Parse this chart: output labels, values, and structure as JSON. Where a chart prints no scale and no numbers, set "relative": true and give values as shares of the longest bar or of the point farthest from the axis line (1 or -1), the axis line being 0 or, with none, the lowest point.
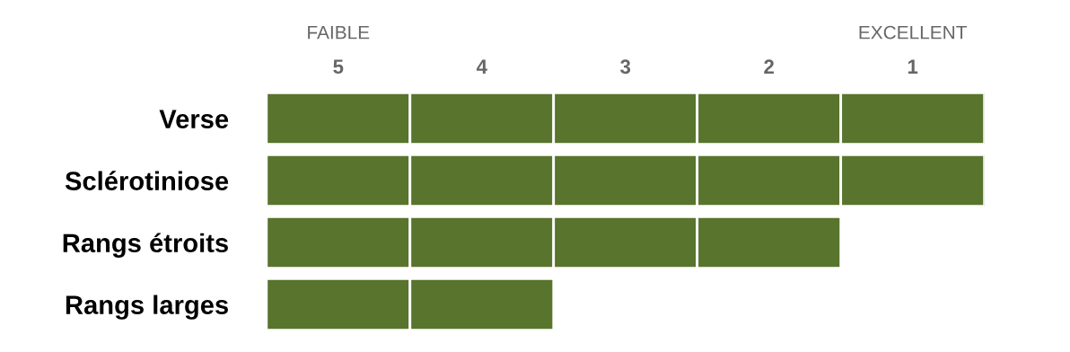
{
  "chart_data": {
    "type": "bar",
    "orientation": "horizontal",
    "stacked": true,
    "relative": true,
    "categories": [
      "Verse",
      "Sclérotiniose",
      "Rangs étroits",
      "Rangs larges"
    ],
    "series": [
      {
        "color": "#58742d",
        "values": [
          0.2,
          0.2,
          0.2,
          0.2
        ]
      },
      {
        "color": "#58742d",
        "values": [
          0.2,
          0.2,
          0.2,
          0.2
        ]
      },
      {
        "color": "#58742d",
        "values": [
          0.2,
          0.2,
          0.2,
          null
        ]
      },
      {
        "color": "#58742d",
        "values": [
          0.2,
          0.2,
          0.2,
          null
        ]
      },
      {
        "color": "#58742d",
        "values": [
          0.2,
          0.2,
          null,
          null
        ]
      }
    ],
    "annotations": [
      "FAIBLE",
      "EXCELLENT",
      "5",
      "4",
      "3",
      "2",
      "1"
    ]
  }
}
